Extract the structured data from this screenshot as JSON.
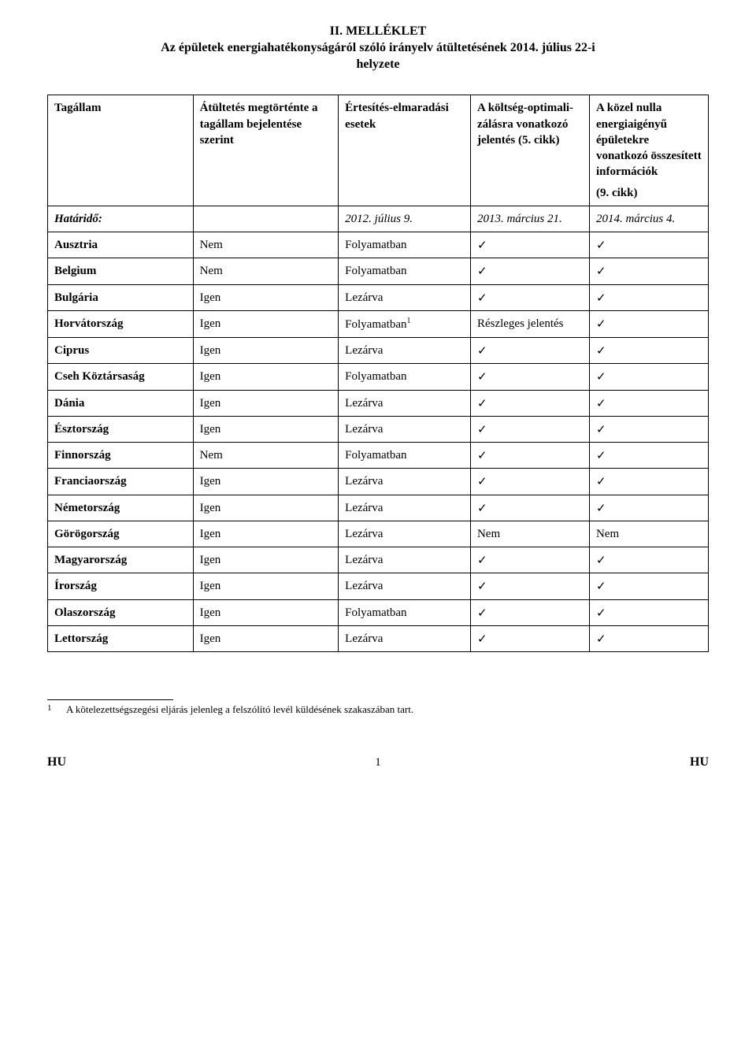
{
  "heading": {
    "line1": "II. MELLÉKLET",
    "line2": "Az épületek energiahatékonyságáról szóló irányelv átültetésének 2014. július 22-i",
    "line3": "helyzete"
  },
  "table": {
    "header": {
      "c1": "Tagállam",
      "c2": "Átültetés megtörténte a tagállam bejelentése szerint",
      "c3": "Értesítés-elmaradási esetek",
      "c4": "A költség-optimali-zálásra vonatkozó jelentés (5. cikk)",
      "c5_main": "A közel nulla energiaigényű épületekre vonatkozó összesített információk",
      "c5_extra": "(9. cikk)"
    },
    "deadline": {
      "label": "Határidő:",
      "c2_blank": "",
      "c3": "2012. július 9.",
      "c4": "2013. március 21.",
      "c5": "2014. március 4."
    },
    "rows": [
      {
        "c1": "Ausztria",
        "c2": "Nem",
        "c3": "Folyamatban",
        "c4": "✓",
        "c5": "✓"
      },
      {
        "c1": "Belgium",
        "c2": "Nem",
        "c3": "Folyamatban",
        "c4": "✓",
        "c5": "✓"
      },
      {
        "c1": "Bulgária",
        "c2": "Igen",
        "c3": "Lezárva",
        "c4": "✓",
        "c5": "✓"
      },
      {
        "c1": "Horvátország",
        "c2": "Igen",
        "c3": "Folyamatban",
        "c3_sup": "1",
        "c4": "Részleges jelentés",
        "c5": "✓"
      },
      {
        "c1": "Ciprus",
        "c2": "Igen",
        "c3": "Lezárva",
        "c4": "✓",
        "c5": "✓"
      },
      {
        "c1": "Cseh Köztársaság",
        "c2": "Igen",
        "c3": "Folyamatban",
        "c4": "✓",
        "c5": "✓"
      },
      {
        "c1": "Dánia",
        "c2": "Igen",
        "c3": "Lezárva",
        "c4": "✓",
        "c5": "✓"
      },
      {
        "c1": "Észtország",
        "c2": "Igen",
        "c3": "Lezárva",
        "c4": "✓",
        "c5": "✓"
      },
      {
        "c1": "Finnország",
        "c2": "Nem",
        "c3": "Folyamatban",
        "c4": "✓",
        "c5": "✓"
      },
      {
        "c1": "Franciaország",
        "c2": "Igen",
        "c3": "Lezárva",
        "c4": "✓",
        "c5": "✓"
      },
      {
        "c1": "Németország",
        "c2": "Igen",
        "c3": "Lezárva",
        "c4": "✓",
        "c5": "✓"
      },
      {
        "c1": "Görögország",
        "c2": "Igen",
        "c3": "Lezárva",
        "c4": "Nem",
        "c5": "Nem"
      },
      {
        "c1": "Magyarország",
        "c2": "Igen",
        "c3": "Lezárva",
        "c4": "✓",
        "c5": "✓"
      },
      {
        "c1": "Írország",
        "c2": "Igen",
        "c3": "Lezárva",
        "c4": "✓",
        "c5": "✓"
      },
      {
        "c1": "Olaszország",
        "c2": "Igen",
        "c3": "Folyamatban",
        "c4": "✓",
        "c5": "✓"
      },
      {
        "c1": "Lettország",
        "c2": "Igen",
        "c3": "Lezárva",
        "c4": "✓",
        "c5": "✓"
      }
    ]
  },
  "footnote": {
    "marker": "1",
    "text": "A kötelezettségszegési eljárás jelenleg a felszólító levél küldésének szakaszában tart."
  },
  "footer": {
    "left": "HU",
    "page": "1",
    "right": "HU"
  }
}
